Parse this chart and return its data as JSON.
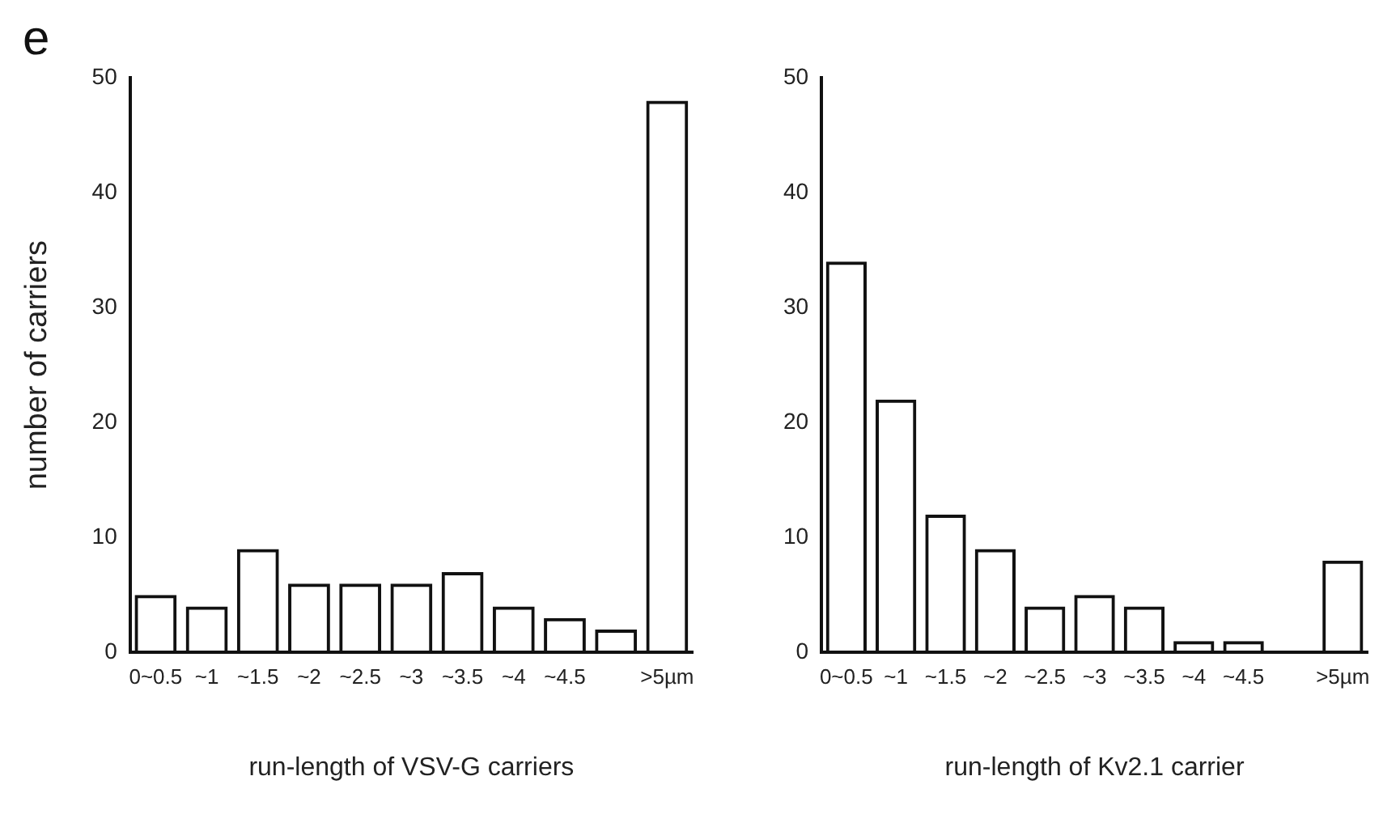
{
  "chart_data": [
    {
      "type": "bar",
      "annotations": [
        "e"
      ],
      "ylabel": "number of carriers",
      "xlabel": "run-length of VSV-G carriers",
      "categories": [
        "0~0.5",
        "~1",
        "~1.5",
        "~2",
        "~2.5",
        "~3",
        "~3.5",
        "~4",
        "~4.5",
        null,
        ">5µm"
      ],
      "values": [
        5,
        4,
        9,
        6,
        6,
        6,
        7,
        4,
        3,
        2,
        48
      ],
      "color": "#111111",
      "ylim": [
        0,
        50
      ],
      "yticks": [
        0,
        10,
        20,
        30,
        40,
        50
      ],
      "grid": false,
      "legend": false
    },
    {
      "type": "bar",
      "xlabel": "run-length of Kv2.1 carrier",
      "categories": [
        "0~0.5",
        "~1",
        "~1.5",
        "~2",
        "~2.5",
        "~3",
        "~3.5",
        "~4",
        "~4.5",
        null,
        ">5µm"
      ],
      "values": [
        34,
        22,
        12,
        9,
        4,
        5,
        4,
        1,
        1,
        0,
        8
      ],
      "color": "#111111",
      "ylim": [
        0,
        50
      ],
      "yticks": [
        0,
        10,
        20,
        30,
        40,
        50
      ],
      "grid": false,
      "legend": false
    }
  ]
}
